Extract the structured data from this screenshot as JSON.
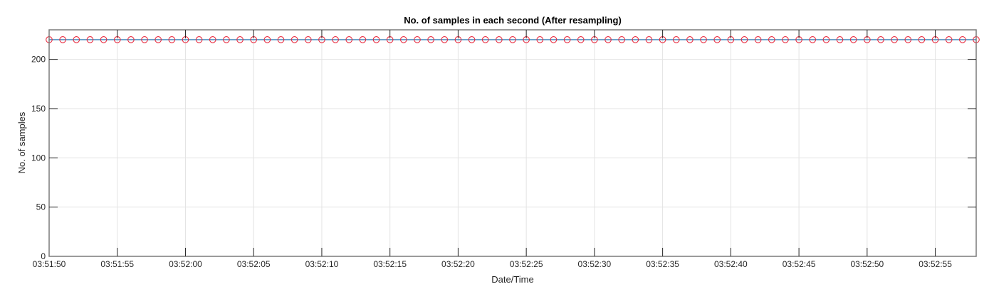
{
  "chart_data": {
    "type": "line",
    "title": "No. of samples in each second (After resampling)",
    "xlabel": "Date/Time",
    "ylabel": "No. of samples",
    "xlim": [
      "03:51:50",
      "03:52:58"
    ],
    "ylim": [
      0,
      230
    ],
    "grid": true,
    "x_tick_labels": [
      "03:51:50",
      "03:51:55",
      "03:52:00",
      "03:52:05",
      "03:52:10",
      "03:52:15",
      "03:52:20",
      "03:52:25",
      "03:52:30",
      "03:52:35",
      "03:52:40",
      "03:52:45",
      "03:52:50",
      "03:52:55"
    ],
    "y_ticks": [
      0,
      50,
      100,
      150,
      200
    ],
    "series": [
      {
        "x_start": "03:51:50",
        "x_end": "03:52:58",
        "x_step_seconds": 1,
        "value": 220,
        "line_color": "#4f8fc0",
        "marker": "circle",
        "marker_color": "#e8283c"
      }
    ]
  }
}
